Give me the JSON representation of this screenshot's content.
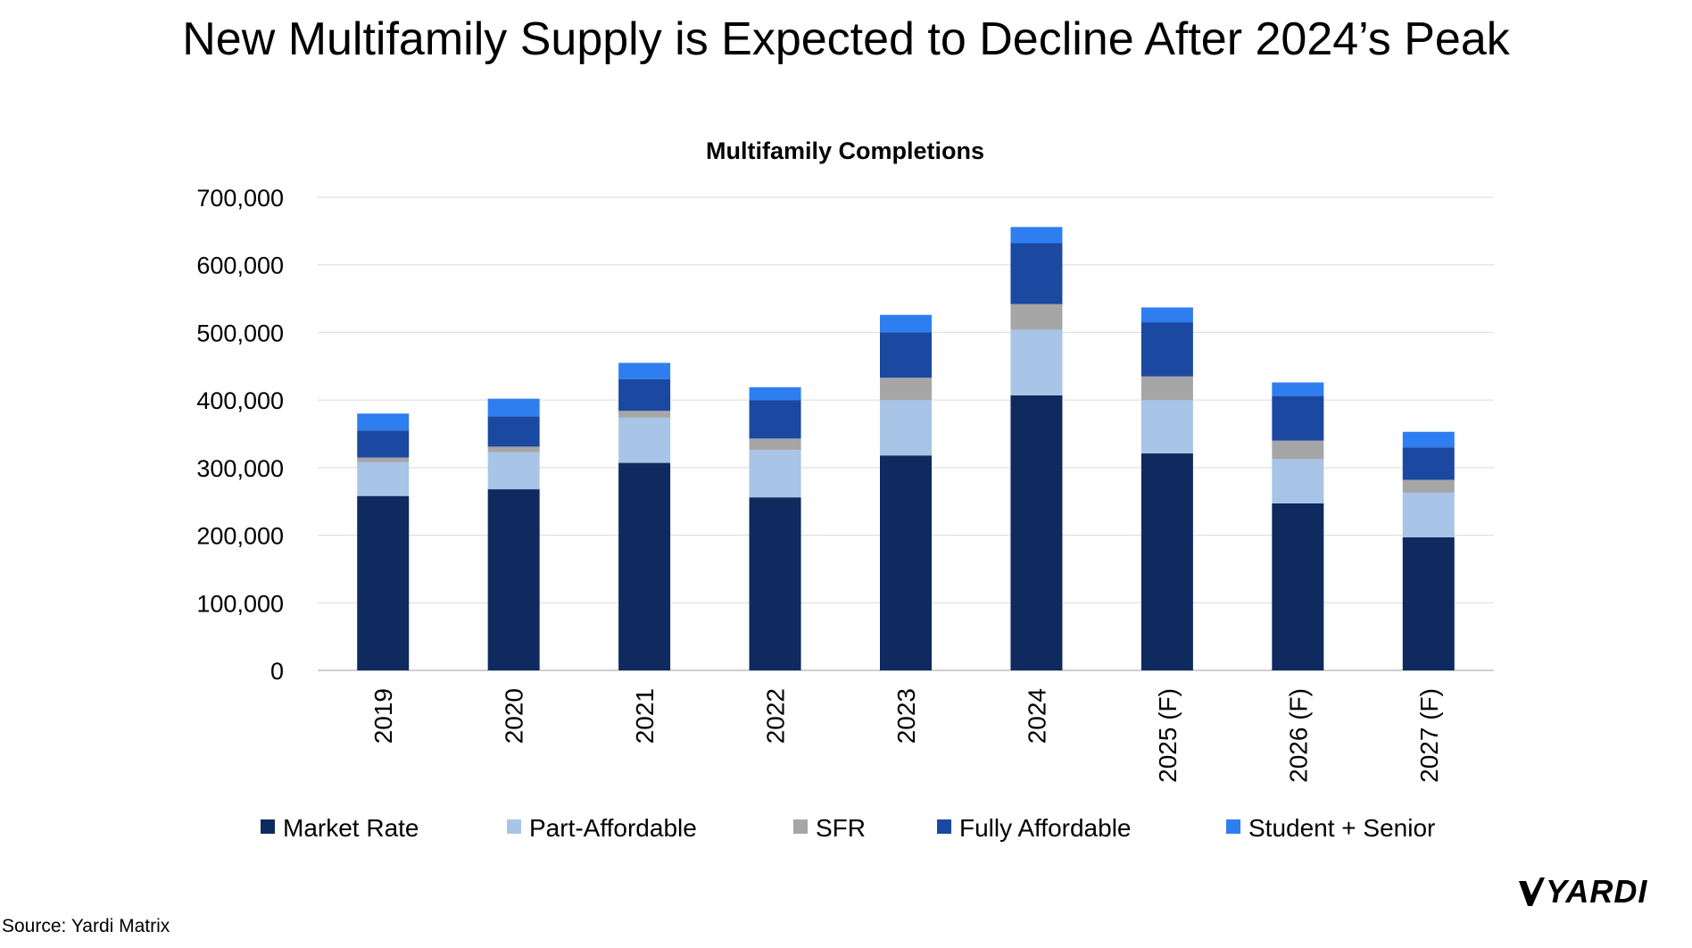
{
  "slide": {
    "title": "New Multifamily Supply is Expected to Decline After 2024’s Peak",
    "source": "Source: Yardi Matrix",
    "logo_text": "YARDI"
  },
  "chart_data": {
    "type": "bar",
    "stacked": true,
    "title": "Multifamily Completions",
    "xlabel": "",
    "ylabel": "",
    "ylim": [
      0,
      700000
    ],
    "yticks": [
      0,
      100000,
      200000,
      300000,
      400000,
      500000,
      600000,
      700000
    ],
    "ytick_labels": [
      "0",
      "100,000",
      "200,000",
      "300,000",
      "400,000",
      "500,000",
      "600,000",
      "700,000"
    ],
    "grid": true,
    "legend_position": "bottom",
    "categories": [
      "2019",
      "2020",
      "2021",
      "2022",
      "2023",
      "2024",
      "2025 (F)",
      "2026 (F)",
      "2027 (F)"
    ],
    "series": [
      {
        "name": "Market Rate",
        "color": "#0e2a5f",
        "values": [
          258000,
          268000,
          307000,
          256000,
          318000,
          407000,
          321000,
          247000,
          197000
        ]
      },
      {
        "name": "Part-Affordable",
        "color": "#a8c4e6",
        "values": [
          50000,
          55000,
          67000,
          70000,
          82000,
          97000,
          79000,
          66000,
          66000
        ]
      },
      {
        "name": "SFR",
        "color": "#a6a6a6",
        "values": [
          7000,
          8000,
          10000,
          17000,
          33000,
          38000,
          35000,
          27000,
          19000
        ]
      },
      {
        "name": "Fully Affordable",
        "color": "#1b48a0",
        "values": [
          40000,
          45000,
          47000,
          57000,
          67000,
          90000,
          80000,
          66000,
          48000
        ]
      },
      {
        "name": "Student + Senior",
        "color": "#2f7ef0",
        "values": [
          25000,
          26000,
          24000,
          19000,
          26000,
          24000,
          22000,
          20000,
          23000
        ]
      }
    ]
  }
}
